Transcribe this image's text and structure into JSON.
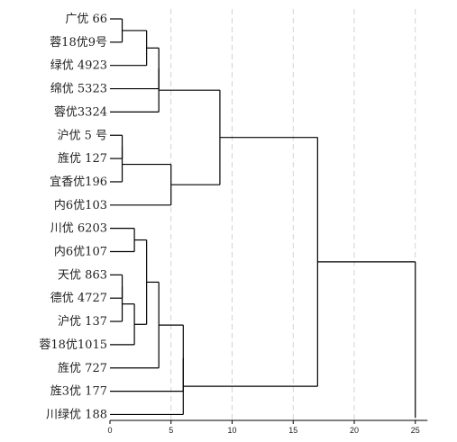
{
  "chart_data": {
    "type": "dendrogram",
    "orientation": "horizontal",
    "leaves": [
      "广优 66",
      "蓉18优9号",
      "绿优 4923",
      "绵优 5323",
      "蓉优3324",
      "沪优 5 号",
      "旌优 127",
      "宜香优196",
      "内6优103",
      "川优 6203",
      "内6优107",
      "天优 863",
      "德优 4727",
      "沪优 137",
      "蓉18优1015",
      "旌优 727",
      "旌3优 177",
      "川绿优 188"
    ],
    "merges": [
      {
        "left": "L0",
        "right": "L1",
        "distance": 1.0
      },
      {
        "left": "C0",
        "right": "L2",
        "distance": 3.0
      },
      {
        "left": "C1",
        "right": "L3",
        "distance": 4.0
      },
      {
        "left": "C2",
        "right": "L4",
        "distance": 4.0
      },
      {
        "left": "L5",
        "right": "L6",
        "distance": 1.0
      },
      {
        "left": "C4",
        "right": "L7",
        "distance": 1.0
      },
      {
        "left": "C5",
        "right": "L8",
        "distance": 5.0
      },
      {
        "left": "C3",
        "right": "C6",
        "distance": 9.0
      },
      {
        "left": "L9",
        "right": "L10",
        "distance": 2.0
      },
      {
        "left": "L11",
        "right": "L12",
        "distance": 1.0
      },
      {
        "left": "C9",
        "right": "L13",
        "distance": 1.0
      },
      {
        "left": "C10",
        "right": "L14",
        "distance": 2.0
      },
      {
        "left": "C8",
        "right": "C11",
        "distance": 3.0
      },
      {
        "left": "C12",
        "right": "L15",
        "distance": 4.0
      },
      {
        "left": "C13",
        "right": "L16",
        "distance": 6.0
      },
      {
        "left": "C14",
        "right": "L17",
        "distance": 6.0
      },
      {
        "left": "C7",
        "right": "C15",
        "distance": 17.0
      },
      {
        "left": "C16",
        "right": "root",
        "distance": 25.0
      }
    ],
    "x_ticks": [
      0,
      5,
      10,
      15,
      20,
      25
    ],
    "xlim": [
      0,
      26
    ],
    "grid": true
  }
}
